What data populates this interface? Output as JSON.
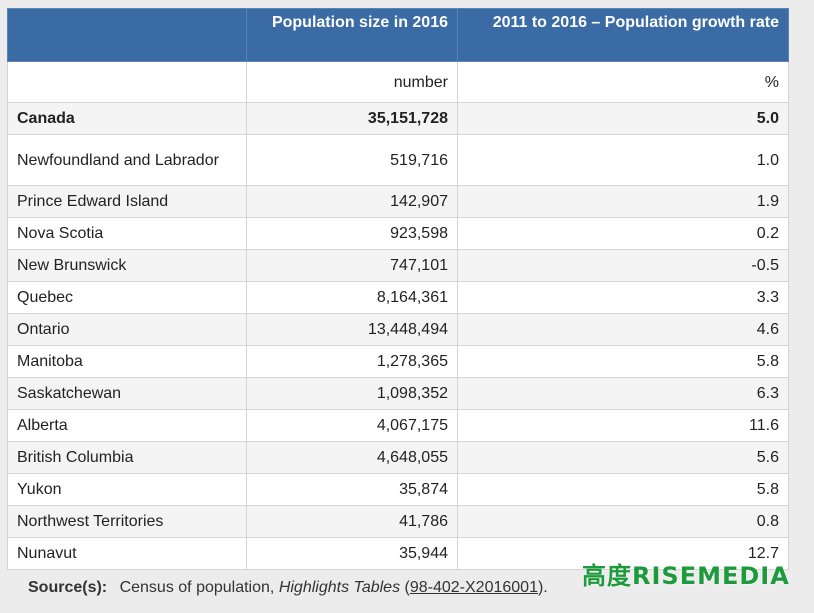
{
  "table": {
    "headers": [
      "",
      "Population size in 2016",
      "2011 to 2016 – Population growth rate"
    ],
    "units": [
      "",
      "number",
      "%"
    ],
    "rows": [
      {
        "name": "Canada",
        "population": "35,151,728",
        "growth": "5.0"
      },
      {
        "name": "Newfoundland and Labrador",
        "population": "519,716",
        "growth": "1.0"
      },
      {
        "name": "Prince Edward Island",
        "population": "142,907",
        "growth": "1.9"
      },
      {
        "name": "Nova Scotia",
        "population": "923,598",
        "growth": "0.2"
      },
      {
        "name": "New Brunswick",
        "population": "747,101",
        "growth": "-0.5"
      },
      {
        "name": "Quebec",
        "population": "8,164,361",
        "growth": "3.3"
      },
      {
        "name": "Ontario",
        "population": "13,448,494",
        "growth": "4.6"
      },
      {
        "name": "Manitoba",
        "population": "1,278,365",
        "growth": "5.8"
      },
      {
        "name": "Saskatchewan",
        "population": "1,098,352",
        "growth": "6.3"
      },
      {
        "name": "Alberta",
        "population": "4,067,175",
        "growth": "11.6"
      },
      {
        "name": "British Columbia",
        "population": "4,648,055",
        "growth": "5.6"
      },
      {
        "name": "Yukon",
        "population": "35,874",
        "growth": "5.8"
      },
      {
        "name": "Northwest Territories",
        "population": "41,786",
        "growth": "0.8"
      },
      {
        "name": "Nunavut",
        "population": "35,944",
        "growth": "12.7"
      }
    ]
  },
  "source": {
    "label": "Source(s):",
    "text": "Census of population,",
    "italic": "Highlights Tables",
    "open": "(",
    "link": "98-402-X2016001",
    "close": ")."
  },
  "watermark": {
    "chinese": "高度",
    "rise": "RISE",
    "media": "MEDIA"
  }
}
